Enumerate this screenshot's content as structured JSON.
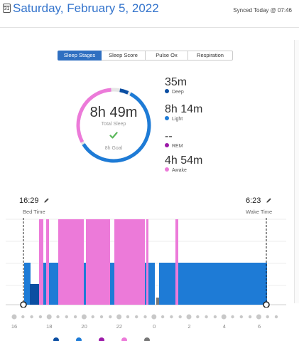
{
  "header": {
    "calendar_day": "31",
    "date_title": "Saturday, February 5, 2022",
    "sync_status": "Synced Today @ 07:46"
  },
  "tabs": [
    {
      "label": "Sleep Stages",
      "active": true
    },
    {
      "label": "Sleep Score",
      "active": false
    },
    {
      "label": "Pulse Ox",
      "active": false
    },
    {
      "label": "Respiration",
      "active": false
    }
  ],
  "summary": {
    "total_value": "8h 49m",
    "total_label": "Total Sleep",
    "goal_label": "8h Goal"
  },
  "stages": [
    {
      "value": "35m",
      "label": "Deep",
      "color": "#0b4ea2"
    },
    {
      "value": "8h 14m",
      "label": "Light",
      "color": "#1e7bd6"
    },
    {
      "value": "--",
      "label": "REM",
      "color": "#9c1aa8"
    },
    {
      "value": "4h 54m",
      "label": "Awake",
      "color": "#ec7ad9"
    }
  ],
  "bed_time": {
    "value": "16:29",
    "label": "Bed Time"
  },
  "wake_time": {
    "value": "6:23",
    "label": "Wake Time"
  },
  "hypnogram": {
    "x_ticks": [
      "16",
      "18",
      "20",
      "22",
      "0",
      "2",
      "4",
      "6"
    ],
    "colors": {
      "deep": "#0b4ea2",
      "light": "#1e7bd6",
      "rem": "#9c1aa8",
      "awake": "#ec7ad9",
      "unmeasurable": "#777777"
    }
  },
  "bottom_legend": [
    {
      "color": "#0b4ea2"
    },
    {
      "color": "#1e7bd6"
    },
    {
      "color": "#9c1aa8"
    },
    {
      "color": "#ec7ad9"
    },
    {
      "color": "#777777"
    }
  ]
}
